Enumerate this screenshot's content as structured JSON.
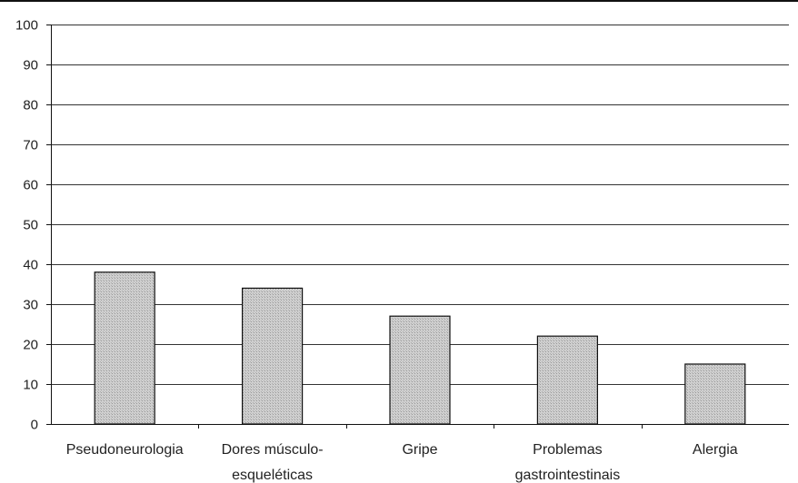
{
  "chart_data": {
    "type": "bar",
    "title": "",
    "xlabel": "",
    "ylabel": "",
    "ylim": [
      0,
      100
    ],
    "yticks": [
      0,
      10,
      20,
      30,
      40,
      50,
      60,
      70,
      80,
      90,
      100
    ],
    "categories": [
      [
        "Pseudoneurologia"
      ],
      [
        "Dores músculo-",
        "esqueléticas"
      ],
      [
        "Gripe"
      ],
      [
        "Problemas",
        "gastrointestinais"
      ],
      [
        "Alergia"
      ]
    ],
    "values": [
      38,
      34,
      27,
      22,
      15
    ],
    "grid": true,
    "legend": "none",
    "bar_color": "#c8c8c8",
    "bar_stroke": "#111111",
    "grid_color": "#333333"
  }
}
